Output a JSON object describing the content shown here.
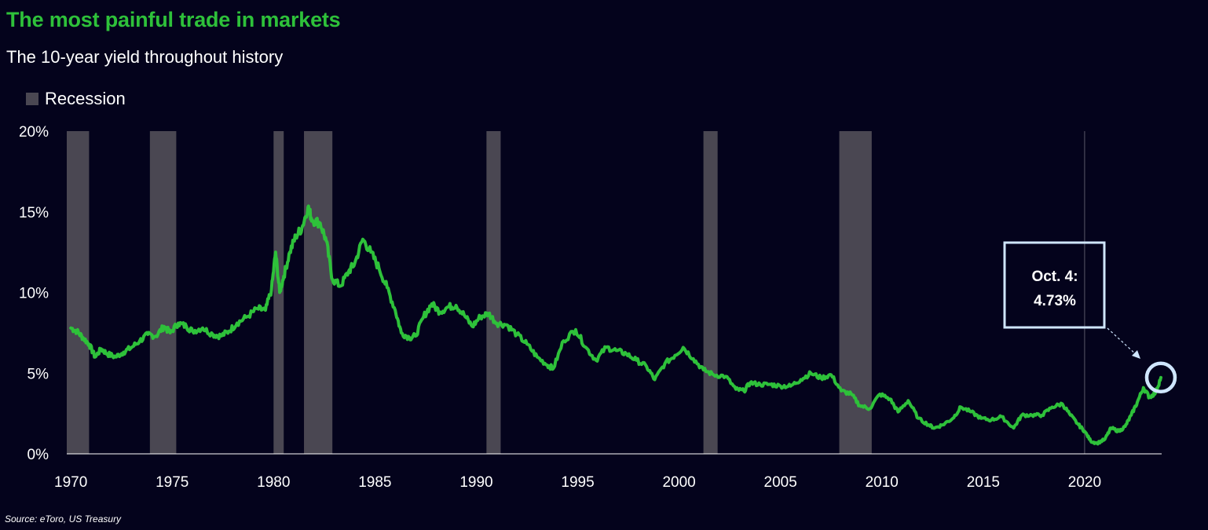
{
  "header": {
    "title": "The most painful trade in markets",
    "subtitle": "The 10-year yield throughout history"
  },
  "legend": {
    "label": "Recession"
  },
  "footer": {
    "source": "Source: eToro, US Treasury"
  },
  "colors": {
    "background": "#04031c",
    "line": "#2ec13a",
    "title": "#2ec13a",
    "recession": "#4a4752",
    "annotation": "#cfe6ff",
    "text": "#ffffff"
  },
  "chart_data": {
    "type": "line",
    "title": "The most painful trade in markets",
    "subtitle": "The 10-year yield throughout history",
    "xlabel": "",
    "ylabel": "",
    "xlim": [
      1969.8,
      2023.8
    ],
    "ylim": [
      0,
      20
    ],
    "x_ticks": [
      1970,
      1975,
      1980,
      1985,
      1990,
      1995,
      2000,
      2005,
      2010,
      2015,
      2020
    ],
    "y_ticks": [
      0,
      5,
      10,
      15,
      20
    ],
    "y_tick_labels": [
      "0%",
      "5%",
      "10%",
      "15%",
      "20%"
    ],
    "grid": false,
    "legend_position": "top-left",
    "recessions": [
      [
        1969.8,
        1970.9
      ],
      [
        1973.9,
        1975.2
      ],
      [
        1980.0,
        1980.5
      ],
      [
        1981.5,
        1982.9
      ],
      [
        1990.5,
        1991.2
      ],
      [
        2001.2,
        2001.9
      ],
      [
        2007.9,
        2009.5
      ]
    ],
    "series": [
      {
        "x": [
          1970.0,
          1970.3,
          1970.6,
          1970.9,
          1971.2,
          1971.5,
          1971.8,
          1972.2,
          1972.6,
          1973.0,
          1973.4,
          1973.8,
          1974.2,
          1974.6,
          1974.9,
          1975.3,
          1975.7,
          1976.0,
          1976.5,
          1977.0,
          1977.4,
          1977.8,
          1978.2,
          1978.7,
          1979.2,
          1979.6,
          1979.9,
          1980.1,
          1980.3,
          1980.5,
          1980.8,
          1981.1,
          1981.4,
          1981.7,
          1981.9,
          1982.3,
          1982.6,
          1982.9,
          1983.3,
          1983.7,
          1984.0,
          1984.4,
          1984.8,
          1985.2,
          1985.6,
          1986.0,
          1986.3,
          1986.7,
          1987.0,
          1987.4,
          1987.8,
          1988.2,
          1988.6,
          1989.0,
          1989.4,
          1989.8,
          1990.2,
          1990.6,
          1991.0,
          1991.5,
          1992.0,
          1992.5,
          1993.0,
          1993.5,
          1993.8,
          1994.3,
          1994.9,
          1995.4,
          1995.9,
          1996.4,
          1996.9,
          1997.4,
          1997.9,
          1998.4,
          1998.8,
          1999.3,
          1999.8,
          2000.2,
          2000.7,
          2001.2,
          2001.7,
          2002.3,
          2002.8,
          2003.2,
          2003.5,
          2004.0,
          2004.5,
          2005.0,
          2005.5,
          2006.0,
          2006.5,
          2007.0,
          2007.5,
          2008.0,
          2008.5,
          2008.9,
          2009.4,
          2009.9,
          2010.4,
          2010.8,
          2011.3,
          2011.8,
          2012.3,
          2012.6,
          2013.0,
          2013.5,
          2013.9,
          2014.4,
          2014.9,
          2015.4,
          2015.9,
          2016.5,
          2016.9,
          2017.4,
          2017.9,
          2018.4,
          2018.9,
          2019.3,
          2019.7,
          2020.0,
          2020.3,
          2020.6,
          2021.0,
          2021.3,
          2021.7,
          2022.0,
          2022.3,
          2022.6,
          2022.9,
          2023.2,
          2023.5,
          2023.76
        ],
        "y": [
          7.8,
          7.6,
          7.2,
          6.8,
          6.0,
          6.5,
          6.2,
          6.0,
          6.3,
          6.6,
          7.0,
          7.4,
          7.3,
          7.9,
          7.5,
          8.1,
          7.9,
          7.6,
          7.8,
          7.4,
          7.3,
          7.6,
          8.1,
          8.5,
          9.0,
          8.9,
          10.2,
          12.5,
          10.0,
          11.0,
          12.5,
          13.5,
          14.0,
          15.3,
          14.5,
          14.3,
          13.2,
          10.8,
          10.4,
          11.3,
          11.8,
          13.3,
          12.5,
          11.5,
          10.3,
          8.9,
          7.5,
          7.2,
          7.3,
          8.5,
          9.3,
          8.8,
          9.1,
          9.2,
          8.6,
          7.9,
          8.5,
          8.7,
          8.1,
          8.0,
          7.4,
          6.8,
          6.0,
          5.5,
          5.3,
          7.0,
          7.7,
          6.6,
          5.8,
          6.6,
          6.4,
          6.2,
          5.8,
          5.4,
          4.6,
          5.6,
          6.1,
          6.6,
          5.9,
          5.2,
          4.9,
          4.8,
          4.0,
          3.9,
          4.4,
          4.3,
          4.3,
          4.2,
          4.2,
          4.6,
          5.0,
          4.7,
          4.9,
          3.9,
          3.7,
          3.0,
          2.8,
          3.7,
          3.4,
          2.6,
          3.3,
          2.2,
          1.8,
          1.6,
          1.8,
          2.2,
          2.9,
          2.6,
          2.2,
          2.1,
          2.3,
          1.6,
          2.4,
          2.4,
          2.4,
          2.9,
          3.1,
          2.4,
          1.8,
          1.4,
          0.8,
          0.65,
          0.9,
          1.6,
          1.4,
          1.7,
          2.4,
          3.2,
          4.1,
          3.5,
          3.8,
          4.73
        ]
      }
    ],
    "annotation": {
      "label_line1": "Oct. 4:",
      "label_line2": "4.73%",
      "x": 2023.76,
      "y": 4.73
    }
  }
}
